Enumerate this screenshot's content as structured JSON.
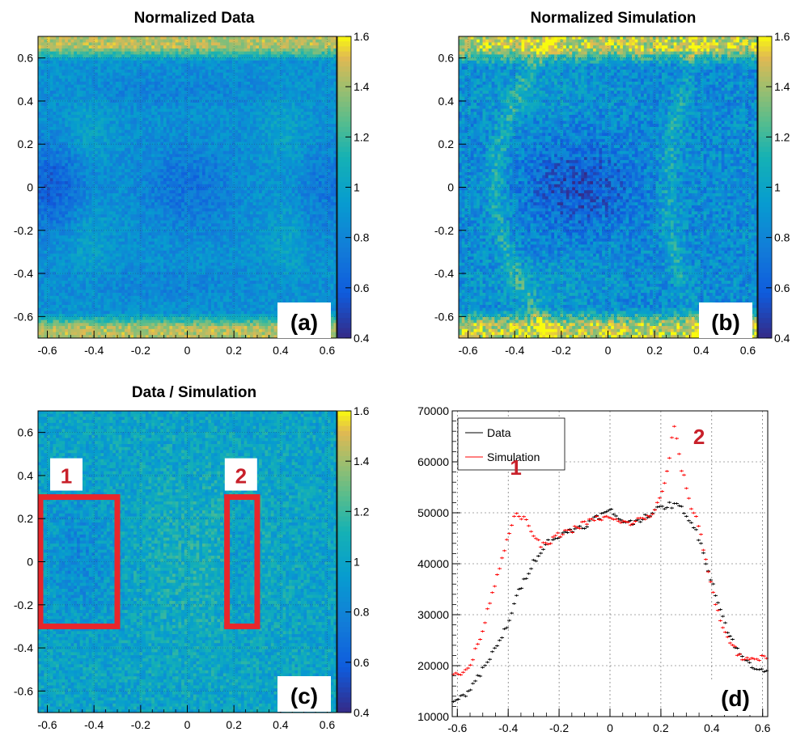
{
  "panels": [
    {
      "id": "a",
      "type": "heatmap",
      "title": "Normalized Data",
      "panel_label": "(a)",
      "x_ticks": [
        "-0.6",
        "-0.4",
        "-0.2",
        "0",
        "0.2",
        "0.4",
        "0.6"
      ],
      "x_tick_values": [
        -0.6,
        -0.4,
        -0.2,
        0,
        0.2,
        0.4,
        0.6
      ],
      "y_ticks": [
        "-0.6",
        "-0.4",
        "-0.2",
        "0",
        "0.2",
        "0.4",
        "0.6"
      ],
      "y_tick_values": [
        -0.6,
        -0.4,
        -0.2,
        0,
        0.2,
        0.4,
        0.6
      ],
      "xlim": [
        -0.64,
        0.64
      ],
      "ylim": [
        -0.7,
        0.7
      ],
      "zlim": [
        0.4,
        1.6
      ],
      "z_ticks": [
        "0.4",
        "0.6",
        "0.8",
        "1",
        "1.2",
        "1.4",
        "1.6"
      ],
      "z_tick_values": [
        0.4,
        0.6,
        0.8,
        1.0,
        1.2,
        1.4,
        1.6
      ],
      "grid": true
    },
    {
      "id": "b",
      "type": "heatmap",
      "title": "Normalized Simulation",
      "panel_label": "(b)",
      "x_ticks": [
        "-0.6",
        "-0.4",
        "-0.2",
        "0",
        "0.2",
        "0.4",
        "0.6"
      ],
      "x_tick_values": [
        -0.6,
        -0.4,
        -0.2,
        0,
        0.2,
        0.4,
        0.6
      ],
      "y_ticks": [
        "-0.6",
        "-0.4",
        "-0.2",
        "0",
        "0.2",
        "0.4",
        "0.6"
      ],
      "y_tick_values": [
        -0.6,
        -0.4,
        -0.2,
        0,
        0.2,
        0.4,
        0.6
      ],
      "xlim": [
        -0.64,
        0.64
      ],
      "ylim": [
        -0.7,
        0.7
      ],
      "zlim": [
        0.4,
        1.6
      ],
      "z_ticks": [
        "0.4",
        "0.6",
        "0.8",
        "1",
        "1.2",
        "1.4",
        "1.6"
      ],
      "z_tick_values": [
        0.4,
        0.6,
        0.8,
        1.0,
        1.2,
        1.4,
        1.6
      ],
      "grid": true
    },
    {
      "id": "c",
      "type": "heatmap",
      "title": "Data / Simulation",
      "panel_label": "(c)",
      "x_ticks": [
        "-0.6",
        "-0.4",
        "-0.2",
        "0",
        "0.2",
        "0.4",
        "0.6"
      ],
      "x_tick_values": [
        -0.6,
        -0.4,
        -0.2,
        0,
        0.2,
        0.4,
        0.6
      ],
      "y_ticks": [
        "-0.6",
        "-0.4",
        "-0.2",
        "0",
        "0.2",
        "0.4",
        "0.6"
      ],
      "y_tick_values": [
        -0.6,
        -0.4,
        -0.2,
        0,
        0.2,
        0.4,
        0.6
      ],
      "xlim": [
        -0.64,
        0.64
      ],
      "ylim": [
        -0.7,
        0.7
      ],
      "zlim": [
        0.4,
        1.6
      ],
      "z_ticks": [
        "0.4",
        "0.6",
        "0.8",
        "1",
        "1.2",
        "1.4",
        "1.6"
      ],
      "z_tick_values": [
        0.4,
        0.6,
        0.8,
        1.0,
        1.2,
        1.4,
        1.6
      ],
      "grid": true,
      "regions": [
        {
          "label": "1",
          "x": [
            -0.64,
            -0.3
          ],
          "y": [
            -0.3,
            0.3
          ]
        },
        {
          "label": "2",
          "x": [
            0.16,
            0.3
          ],
          "y": [
            -0.3,
            0.3
          ]
        }
      ]
    },
    {
      "id": "d",
      "type": "line",
      "title": "",
      "panel_label": "(d)",
      "x_ticks": [
        "-0.6",
        "-0.4",
        "-0.2",
        "0",
        "0.2",
        "0.4",
        "0.6"
      ],
      "x_tick_values": [
        -0.6,
        -0.4,
        -0.2,
        0,
        0.2,
        0.4,
        0.6
      ],
      "y_ticks": [
        "10000",
        "20000",
        "30000",
        "40000",
        "50000",
        "60000",
        "70000"
      ],
      "y_tick_values": [
        10000,
        20000,
        30000,
        40000,
        50000,
        60000,
        70000
      ],
      "xlim": [
        -0.62,
        0.62
      ],
      "ylim": [
        10000,
        70000
      ],
      "grid": true,
      "legend_position": "top-left",
      "annotations": [
        {
          "text": "1",
          "x": -0.37,
          "y": 57500
        },
        {
          "text": "2",
          "x": 0.35,
          "y": 63500
        }
      ]
    }
  ],
  "chart_data": [
    {
      "type": "heatmap",
      "title": "Normalized Data",
      "xlim": [
        -0.64,
        0.64
      ],
      "ylim": [
        -0.7,
        0.7
      ],
      "zlim": [
        0.4,
        1.6
      ],
      "colormap": "parula",
      "description_of_features": {
        "high_band_top_y": 0.62,
        "high_band_bottom_y": -0.62,
        "low_blobs": [
          {
            "x": -0.55,
            "y": 0.0,
            "value": 0.6
          },
          {
            "x": 0.0,
            "y": 0.0,
            "value": 0.7
          },
          {
            "x": 0.55,
            "y": 0.0,
            "value": 0.75
          }
        ]
      }
    },
    {
      "type": "heatmap",
      "title": "Normalized Simulation",
      "xlim": [
        -0.64,
        0.64
      ],
      "ylim": [
        -0.7,
        0.7
      ],
      "zlim": [
        0.4,
        1.6
      ],
      "colormap": "parula",
      "description_of_features": {
        "high_band_top_y": 0.62,
        "high_band_bottom_y": -0.62,
        "low_blobs": [
          {
            "x": -0.1,
            "y": 0.0,
            "value": 0.55
          }
        ],
        "bright_arcs_x": [
          -0.4,
          0.25
        ]
      }
    },
    {
      "type": "heatmap",
      "title": "Data / Simulation",
      "xlim": [
        -0.64,
        0.64
      ],
      "ylim": [
        -0.7,
        0.7
      ],
      "zlim": [
        0.4,
        1.6
      ],
      "colormap": "parula",
      "regions": [
        {
          "label": "1",
          "x": [
            -0.64,
            -0.3
          ],
          "y": [
            -0.3,
            0.3
          ],
          "value": 0.75
        },
        {
          "label": "2",
          "x": [
            0.16,
            0.3
          ],
          "y": [
            -0.3,
            0.3
          ],
          "value": 0.8
        }
      ]
    },
    {
      "type": "line",
      "xlim": [
        -0.62,
        0.62
      ],
      "ylim": [
        10000,
        70000
      ],
      "series": [
        {
          "name": "Data",
          "color": "#000000",
          "x": [
            -0.61,
            -0.58,
            -0.55,
            -0.52,
            -0.49,
            -0.46,
            -0.43,
            -0.4,
            -0.37,
            -0.34,
            -0.31,
            -0.28,
            -0.25,
            -0.22,
            -0.19,
            -0.16,
            -0.13,
            -0.1,
            -0.07,
            -0.04,
            -0.01,
            0.0,
            0.02,
            0.05,
            0.08,
            0.11,
            0.14,
            0.17,
            0.2,
            0.23,
            0.26,
            0.29,
            0.32,
            0.35,
            0.38,
            0.41,
            0.44,
            0.47,
            0.5,
            0.53,
            0.56,
            0.59,
            0.62
          ],
          "y": [
            13500,
            13800,
            15500,
            17500,
            20000,
            22500,
            25000,
            28500,
            33000,
            36500,
            39500,
            42000,
            44000,
            45000,
            45500,
            46500,
            47000,
            47500,
            48500,
            49500,
            50000,
            50500,
            49500,
            48500,
            48000,
            48500,
            49500,
            50000,
            51000,
            51500,
            51500,
            50500,
            48000,
            45000,
            40000,
            35000,
            30000,
            26000,
            23000,
            21000,
            20000,
            19500,
            19000
          ]
        },
        {
          "name": "Simulation",
          "color": "#ff0000",
          "x": [
            -0.61,
            -0.58,
            -0.55,
            -0.52,
            -0.49,
            -0.46,
            -0.43,
            -0.4,
            -0.37,
            -0.34,
            -0.31,
            -0.28,
            -0.25,
            -0.22,
            -0.19,
            -0.16,
            -0.13,
            -0.1,
            -0.07,
            -0.04,
            -0.01,
            0.02,
            0.05,
            0.08,
            0.11,
            0.14,
            0.17,
            0.2,
            0.22,
            0.24,
            0.25,
            0.26,
            0.28,
            0.3,
            0.32,
            0.35,
            0.38,
            0.41,
            0.44,
            0.47,
            0.5,
            0.53,
            0.56,
            0.59,
            0.62
          ],
          "y": [
            18000,
            18500,
            20000,
            24000,
            29000,
            35000,
            40000,
            46000,
            49500,
            49000,
            46500,
            44000,
            43500,
            45000,
            46000,
            46500,
            47000,
            48000,
            48500,
            49000,
            49000,
            48500,
            48000,
            48000,
            48500,
            49000,
            50000,
            53000,
            57000,
            63000,
            67000,
            65000,
            59000,
            55000,
            51000,
            47500,
            40000,
            33000,
            28000,
            25000,
            22500,
            21000,
            21000,
            21500,
            22000
          ]
        }
      ],
      "xlabel": "",
      "ylabel": "",
      "legend": [
        "Data",
        "Simulation"
      ]
    }
  ]
}
